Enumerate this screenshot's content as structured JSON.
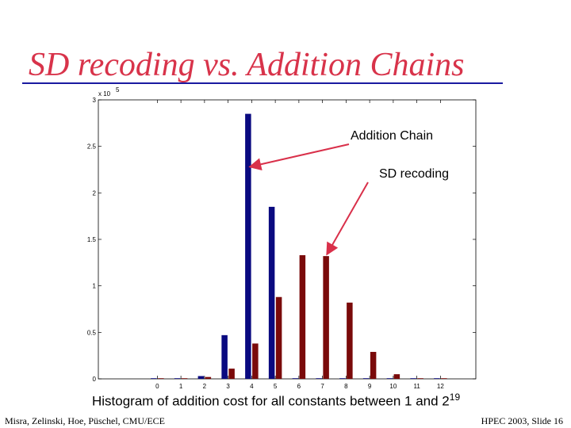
{
  "slide": {
    "title": "SD recoding vs. Addition Chains",
    "caption_text": "Histogram of addition cost for all constants between 1 and 2",
    "caption_exp": "19",
    "footer_left": "Misra, Zelinski, Hoe, Püschel, CMU/ECE",
    "footer_right": "HPEC 2003, Slide 16",
    "colors": {
      "title": "#d8334a",
      "rule": "#1a1aa0",
      "arrow": "#d9304a"
    }
  },
  "chart_data": {
    "type": "bar",
    "categories": [
      "0",
      "1",
      "2",
      "3",
      "4",
      "5",
      "6",
      "7",
      "8",
      "9",
      "10",
      "11",
      "12"
    ],
    "series": [
      {
        "color": "#0a0a80",
        "values": [
          0,
          0,
          0.03,
          0.47,
          2.85,
          1.85,
          0,
          0,
          0,
          0,
          0,
          0,
          0
        ]
      },
      {
        "color": "#7a0a0a",
        "values": [
          0,
          0,
          0.02,
          0.11,
          0.38,
          0.88,
          1.33,
          1.32,
          0.82,
          0.29,
          0.05,
          0,
          0
        ]
      }
    ],
    "yticks": [
      "0",
      "0.5",
      "1",
      "1.5",
      "2",
      "2.5",
      "3"
    ],
    "y_multiplier": "x 10",
    "y_multiplier_exp": "5",
    "ylim": [
      0,
      3
    ],
    "xlim": [
      -2.5,
      13.5
    ],
    "annotations": [
      {
        "text": "Addition Chain",
        "points_to_series": 0,
        "points_to_category": "4"
      },
      {
        "text": "SD recoding",
        "points_to_series": 1,
        "points_to_category": "7"
      }
    ]
  }
}
